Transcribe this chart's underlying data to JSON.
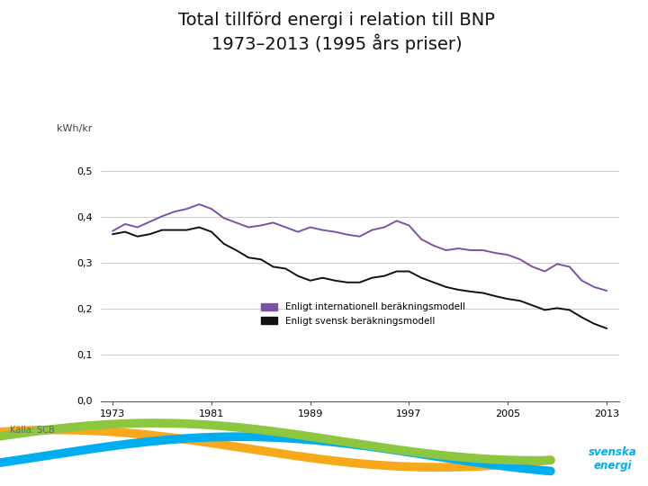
{
  "title_line1": "Total tillförd energi i relation till BNP",
  "title_line2": "1973–2013 (1995 års priser)",
  "source": "Källa: SCB",
  "ylabel": "kWh/kr",
  "yticks": [
    0.0,
    0.1,
    0.2,
    0.3,
    0.4,
    0.5
  ],
  "ytick_labels": [
    "0,0",
    "0,1",
    "0,2",
    "0,3",
    "0,4",
    "0,5"
  ],
  "xticks": [
    1973,
    1981,
    1989,
    1997,
    2005,
    2013
  ],
  "xlim": [
    1972,
    2014
  ],
  "ylim": [
    0.0,
    0.55
  ],
  "color_international": "#7B52A6",
  "color_swedish": "#111111",
  "legend_international": "Enligt internationell beräkningsmodell",
  "legend_swedish": "Enligt svensk beräkningsmodell",
  "years": [
    1973,
    1974,
    1975,
    1976,
    1977,
    1978,
    1979,
    1980,
    1981,
    1982,
    1983,
    1984,
    1985,
    1986,
    1987,
    1988,
    1989,
    1990,
    1991,
    1992,
    1993,
    1994,
    1995,
    1996,
    1997,
    1998,
    1999,
    2000,
    2001,
    2002,
    2003,
    2004,
    2005,
    2006,
    2007,
    2008,
    2009,
    2010,
    2011,
    2012,
    2013
  ],
  "international": [
    0.37,
    0.385,
    0.378,
    0.39,
    0.402,
    0.412,
    0.418,
    0.428,
    0.418,
    0.398,
    0.388,
    0.378,
    0.382,
    0.388,
    0.378,
    0.368,
    0.378,
    0.372,
    0.368,
    0.362,
    0.358,
    0.372,
    0.378,
    0.392,
    0.382,
    0.352,
    0.338,
    0.328,
    0.332,
    0.328,
    0.328,
    0.322,
    0.318,
    0.308,
    0.292,
    0.282,
    0.298,
    0.292,
    0.262,
    0.248,
    0.24
  ],
  "swedish": [
    0.363,
    0.368,
    0.358,
    0.363,
    0.372,
    0.372,
    0.372,
    0.378,
    0.368,
    0.342,
    0.328,
    0.312,
    0.308,
    0.292,
    0.288,
    0.272,
    0.262,
    0.268,
    0.262,
    0.258,
    0.258,
    0.268,
    0.272,
    0.282,
    0.282,
    0.268,
    0.258,
    0.248,
    0.242,
    0.238,
    0.235,
    0.228,
    0.222,
    0.218,
    0.208,
    0.198,
    0.202,
    0.198,
    0.182,
    0.168,
    0.158
  ],
  "background_color": "#ffffff",
  "grid_color": "#cccccc",
  "title_fontsize": 14,
  "wave_colors": [
    "#8DC63F",
    "#00AEEF",
    "#F7A81B"
  ]
}
